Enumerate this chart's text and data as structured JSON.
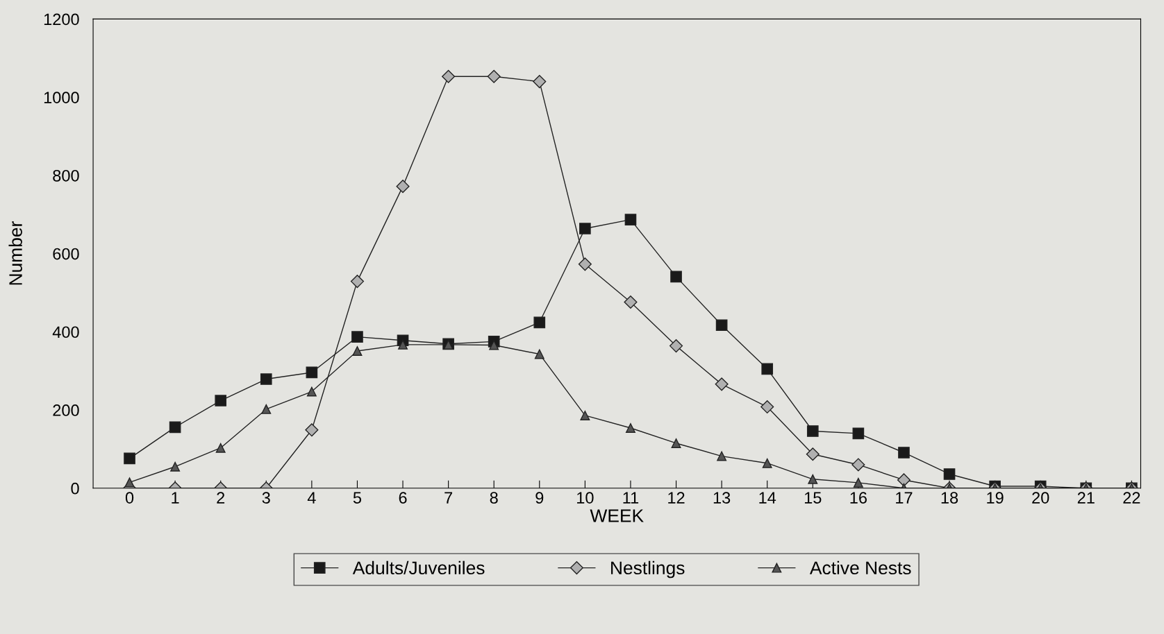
{
  "chart_data": {
    "type": "line",
    "xlabel": "WEEK",
    "ylabel": "Number",
    "categories": [
      "0",
      "1",
      "2",
      "3",
      "4",
      "5",
      "6",
      "7",
      "8",
      "9",
      "10",
      "11",
      "12",
      "13",
      "14",
      "15",
      "16",
      "17",
      "18",
      "19",
      "20",
      "21",
      "22"
    ],
    "series": [
      {
        "name": "Adults/Juveniles",
        "color": "#1a1a1a",
        "marker": "square",
        "values": [
          76,
          156,
          224,
          279,
          296,
          387,
          378,
          369,
          375,
          424,
          664,
          687,
          541,
          417,
          305,
          146,
          140,
          91,
          36,
          5,
          5,
          0,
          0
        ]
      },
      {
        "name": "Nestlings",
        "color": "#b0b0b0",
        "marker": "diamond",
        "values": [
          0,
          0,
          0,
          0,
          149,
          529,
          772,
          1053,
          1053,
          1040,
          573,
          476,
          364,
          266,
          208,
          87,
          60,
          21,
          0,
          0,
          0,
          0,
          0
        ]
      },
      {
        "name": "Active Nests",
        "color": "#555555",
        "marker": "triangle",
        "values": [
          15,
          55,
          103,
          202,
          247,
          351,
          367,
          367,
          366,
          343,
          186,
          154,
          115,
          82,
          64,
          23,
          14,
          0,
          0,
          0,
          0,
          0,
          0
        ]
      }
    ],
    "ylim": [
      0,
      1200
    ],
    "yticks": [
      0,
      200,
      400,
      600,
      800,
      1000,
      1200
    ],
    "grid": false,
    "legend": "bottom",
    "line_style": "solid"
  }
}
